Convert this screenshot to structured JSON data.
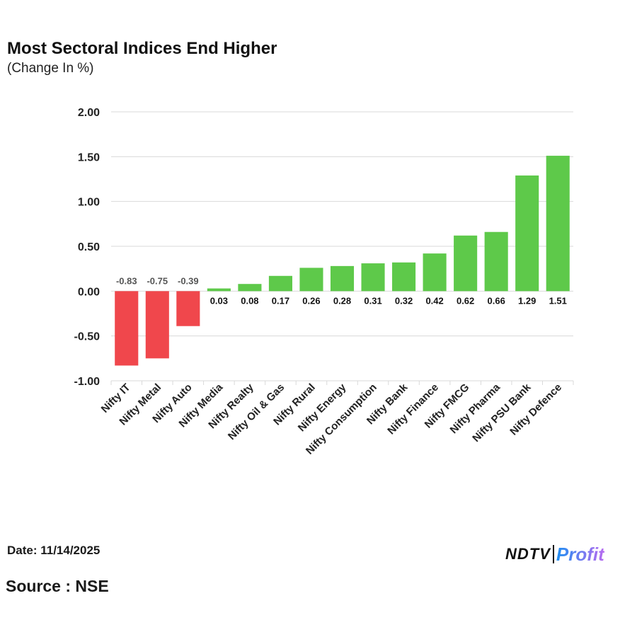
{
  "header": {
    "title": "Most Sectoral Indices End Higher",
    "subtitle": "(Change In %)"
  },
  "footer": {
    "date": "Date: 11/14/2025",
    "source": "Source : NSE"
  },
  "logo": {
    "ndtv": "NDTV",
    "profit": "Profit"
  },
  "colors": {
    "negative": "#f0474c",
    "positive": "#5ec94a",
    "grid": "#d9d9d9"
  },
  "chart_data": {
    "type": "bar",
    "title": "Most Sectoral Indices End Higher",
    "subtitle": "(Change In %)",
    "categories": [
      "Nifty IT",
      "Nifty Metal",
      "Nifty Auto",
      "Nifty Media",
      "Nifty Realty",
      "Nifty Oil & Gas",
      "Nifty Rural",
      "Nifty Energy",
      "Nifty Consumption",
      "Nifty Bank",
      "Nifty Finance",
      "Nifty FMCG",
      "Nifty Pharma",
      "Nifty PSU Bank",
      "Nifty Defence"
    ],
    "values": [
      -0.83,
      -0.75,
      -0.39,
      0.03,
      0.08,
      0.17,
      0.26,
      0.28,
      0.31,
      0.32,
      0.42,
      0.62,
      0.66,
      1.29,
      1.51
    ],
    "data_labels": [
      "-0.83",
      "-0.75",
      "-0.39",
      "0.03",
      "0.08",
      "0.17",
      "0.26",
      "0.28",
      "0.31",
      "0.32",
      "0.42",
      "0.62",
      "0.66",
      "1.29",
      "1.51"
    ],
    "yticks": [
      "2.00",
      "1.50",
      "1.00",
      "0.50",
      "0.00",
      "-0.50",
      "-1.00"
    ],
    "ylim": [
      -1.0,
      2.0
    ],
    "xlabel": "",
    "ylabel": "",
    "grid": true,
    "legend": "none"
  }
}
